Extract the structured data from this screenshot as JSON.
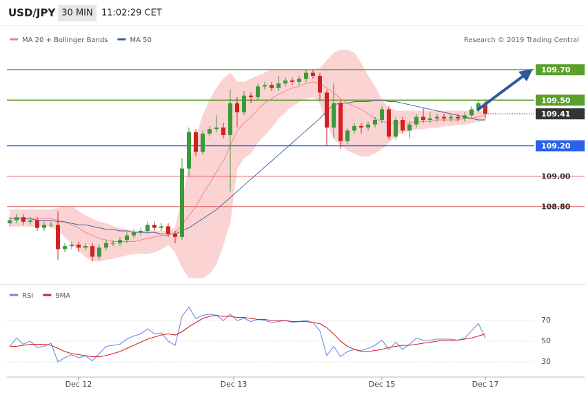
{
  "chart_data": [
    {
      "type": "candlestick",
      "title": "USD/JPY",
      "timeframe": "30 MIN",
      "time": "11:02:29 CET",
      "source": "Research © 2019 Trading Central",
      "xlim": [
        -0.4,
        76.1
      ],
      "ylim": [
        108.3,
        110.1
      ],
      "up_color": "#3a9a3a",
      "down_color": "#d42020",
      "candles": {
        "open": [
          108.69,
          108.71,
          108.73,
          108.7,
          108.71,
          108.66,
          108.68,
          108.68,
          108.52,
          108.54,
          108.55,
          108.53,
          108.54,
          108.47,
          108.53,
          108.56,
          108.56,
          108.58,
          108.61,
          108.63,
          108.64,
          108.68,
          108.66,
          108.67,
          108.62,
          108.6,
          109.05,
          109.29,
          109.16,
          109.28,
          109.31,
          109.32,
          109.27,
          109.48,
          109.42,
          109.53,
          109.52,
          109.59,
          109.6,
          109.58,
          109.61,
          109.63,
          109.62,
          109.64,
          109.68,
          109.66,
          109.55,
          109.32,
          109.48,
          109.23,
          109.3,
          109.33,
          109.32,
          109.34,
          109.37,
          109.44,
          109.26,
          109.37,
          109.3,
          109.34,
          109.39,
          109.37,
          109.38,
          109.39,
          109.38,
          109.39,
          109.38,
          109.4,
          109.44,
          109.48
        ],
        "high": [
          108.73,
          108.75,
          108.75,
          108.73,
          108.73,
          108.7,
          108.7,
          108.77,
          108.56,
          108.57,
          108.57,
          108.56,
          108.56,
          108.55,
          108.58,
          108.58,
          108.6,
          108.63,
          108.65,
          108.66,
          108.7,
          108.7,
          108.69,
          108.69,
          108.64,
          109.12,
          109.32,
          109.31,
          109.3,
          109.33,
          109.4,
          109.35,
          109.57,
          109.52,
          109.56,
          109.55,
          109.61,
          109.62,
          109.62,
          109.66,
          109.65,
          109.65,
          109.66,
          109.7,
          109.7,
          109.68,
          109.57,
          109.61,
          109.5,
          109.32,
          109.35,
          109.35,
          109.36,
          109.39,
          109.46,
          109.46,
          109.39,
          109.39,
          109.36,
          109.41,
          109.45,
          109.42,
          109.41,
          109.41,
          109.41,
          109.41,
          109.42,
          109.46,
          109.5,
          109.5
        ],
        "low": [
          108.67,
          108.69,
          108.68,
          108.68,
          108.64,
          108.64,
          108.66,
          108.45,
          108.5,
          108.52,
          108.5,
          108.51,
          108.44,
          108.45,
          108.51,
          108.54,
          108.54,
          108.56,
          108.59,
          108.61,
          108.62,
          108.64,
          108.64,
          108.6,
          108.56,
          108.58,
          109.0,
          109.13,
          109.14,
          109.26,
          109.29,
          109.25,
          108.9,
          109.32,
          109.4,
          109.48,
          109.5,
          109.57,
          109.56,
          109.56,
          109.59,
          109.6,
          109.6,
          109.62,
          109.64,
          109.5,
          109.2,
          109.25,
          109.18,
          109.21,
          109.28,
          109.28,
          109.3,
          109.32,
          109.35,
          109.24,
          109.24,
          109.28,
          109.25,
          109.32,
          109.35,
          109.35,
          109.36,
          109.36,
          109.36,
          109.36,
          109.36,
          109.38,
          109.42,
          109.38
        ],
        "close": [
          108.71,
          108.73,
          108.7,
          108.71,
          108.66,
          108.68,
          108.68,
          108.52,
          108.54,
          108.55,
          108.53,
          108.54,
          108.47,
          108.53,
          108.56,
          108.56,
          108.58,
          108.61,
          108.63,
          108.64,
          108.68,
          108.66,
          108.67,
          108.62,
          108.6,
          109.05,
          109.29,
          109.16,
          109.28,
          109.31,
          109.32,
          109.27,
          109.48,
          109.42,
          109.53,
          109.52,
          109.59,
          109.6,
          109.58,
          109.61,
          109.63,
          109.62,
          109.64,
          109.68,
          109.66,
          109.55,
          109.32,
          109.48,
          109.23,
          109.3,
          109.33,
          109.32,
          109.34,
          109.37,
          109.44,
          109.26,
          109.37,
          109.3,
          109.34,
          109.39,
          109.37,
          109.38,
          109.39,
          109.38,
          109.39,
          109.38,
          109.4,
          109.44,
          109.48,
          109.41
        ]
      },
      "series": [
        {
          "name": "MA 20 + Bollinger Bands",
          "color": "#f08080",
          "band_color": "#fbd3d3",
          "values": [
            108.72,
            108.72,
            108.72,
            108.72,
            108.72,
            108.72,
            108.72,
            108.71,
            108.7,
            108.68,
            108.66,
            108.63,
            108.61,
            108.59,
            108.58,
            108.57,
            108.57,
            108.57,
            108.57,
            108.58,
            108.59,
            108.6,
            108.61,
            108.61,
            108.63,
            108.68,
            108.74,
            108.8,
            108.88,
            108.95,
            109.03,
            109.1,
            109.2,
            109.3,
            109.35,
            109.39,
            109.44,
            109.48,
            109.51,
            109.54,
            109.56,
            109.58,
            109.59,
            109.61,
            109.62,
            109.61,
            109.58,
            109.55,
            109.51,
            109.48,
            109.46,
            109.44,
            109.41,
            109.38,
            109.36,
            109.35,
            109.35,
            109.35,
            109.35,
            109.36,
            109.36,
            109.36,
            109.37,
            109.37,
            109.37,
            109.37,
            109.38,
            109.38,
            109.39,
            109.4
          ],
          "upper": [
            108.78,
            108.78,
            108.78,
            108.78,
            108.78,
            108.78,
            108.78,
            108.79,
            108.8,
            108.8,
            108.77,
            108.74,
            108.72,
            108.7,
            108.69,
            108.67,
            108.66,
            108.65,
            108.64,
            108.64,
            108.64,
            108.64,
            108.64,
            108.64,
            108.66,
            108.85,
            109.05,
            109.25,
            109.4,
            109.5,
            109.58,
            109.64,
            109.68,
            109.62,
            109.62,
            109.64,
            109.66,
            109.68,
            109.7,
            109.7,
            109.7,
            109.7,
            109.7,
            109.7,
            109.7,
            109.71,
            109.76,
            109.81,
            109.83,
            109.83,
            109.81,
            109.74,
            109.66,
            109.59,
            109.5,
            109.45,
            109.43,
            109.43,
            109.43,
            109.43,
            109.43,
            109.43,
            109.43,
            109.43,
            109.43,
            109.43,
            109.43,
            109.43,
            109.43,
            109.43
          ],
          "lower": [
            108.67,
            108.67,
            108.67,
            108.67,
            108.67,
            108.67,
            108.67,
            108.64,
            108.6,
            108.56,
            108.51,
            108.47,
            108.44,
            108.44,
            108.45,
            108.46,
            108.47,
            108.48,
            108.49,
            108.49,
            108.49,
            108.5,
            108.52,
            108.55,
            108.5,
            108.4,
            108.33,
            108.33,
            108.33,
            108.36,
            108.42,
            108.55,
            108.7,
            109.05,
            109.12,
            109.15,
            109.22,
            109.27,
            109.32,
            109.38,
            109.42,
            109.46,
            109.49,
            109.51,
            109.52,
            109.48,
            109.35,
            109.25,
            109.2,
            109.17,
            109.15,
            109.13,
            109.13,
            109.15,
            109.18,
            109.22,
            109.27,
            109.29,
            109.3,
            109.31,
            109.31,
            109.32,
            109.32,
            109.33,
            109.33,
            109.34,
            109.34,
            109.35,
            109.36,
            109.37
          ]
        },
        {
          "name": "MA 50",
          "color": "#3d5a99",
          "values": [
            108.72,
            108.72,
            108.72,
            108.72,
            108.71,
            108.71,
            108.71,
            108.7,
            108.7,
            108.69,
            108.68,
            108.68,
            108.67,
            108.66,
            108.65,
            108.65,
            108.64,
            108.64,
            108.63,
            108.63,
            108.63,
            108.63,
            108.62,
            108.62,
            108.62,
            108.64,
            108.66,
            108.69,
            108.72,
            108.75,
            108.78,
            108.82,
            108.86,
            108.9,
            108.94,
            108.98,
            109.02,
            109.06,
            109.1,
            109.14,
            109.18,
            109.22,
            109.26,
            109.3,
            109.34,
            109.38,
            109.43,
            109.47,
            109.48,
            109.48,
            109.49,
            109.49,
            109.49,
            109.5,
            109.5,
            109.49,
            109.49,
            109.48,
            109.47,
            109.46,
            109.45,
            109.44,
            109.43,
            109.42,
            109.41,
            109.4,
            109.39,
            109.38,
            109.37,
            109.37
          ]
        }
      ],
      "levels": [
        {
          "value": 109.7,
          "label": "109.70",
          "color": "#5aa02c",
          "boxed": true,
          "dotted": false
        },
        {
          "value": 109.5,
          "label": "109.50",
          "color": "#5aa02c",
          "boxed": true,
          "dotted": false
        },
        {
          "value": 109.41,
          "label": "109.41",
          "color": "#333333",
          "boxed": true,
          "dotted": true
        },
        {
          "value": 109.2,
          "label": "109.20",
          "color": "#2962e8",
          "boxed": true,
          "dotted": false
        },
        {
          "value": 109.0,
          "label": "109.00",
          "color": "#e06060",
          "boxed": false,
          "dotted": false
        },
        {
          "value": 108.8,
          "label": "108.80",
          "color": "#e06060",
          "boxed": false,
          "dotted": false
        }
      ]
    },
    {
      "type": "line",
      "xlim": [
        -0.4,
        76.1
      ],
      "ylim": [
        20,
        100
      ],
      "yticks": [
        30,
        50,
        70
      ],
      "grid": true,
      "xticks": [
        {
          "value": 10,
          "label": "Dec 12"
        },
        {
          "value": 32.5,
          "label": "Dec 13"
        },
        {
          "value": 54,
          "label": "Dec 15"
        },
        {
          "value": 69,
          "label": "Dec 17"
        }
      ],
      "series": [
        {
          "name": "RSI",
          "color": "#6a8ee0",
          "values": [
            45,
            53,
            47,
            50,
            44,
            45,
            48,
            30,
            34,
            37,
            34,
            36,
            31,
            38,
            45,
            46,
            47,
            52,
            55,
            57,
            62,
            57,
            58,
            50,
            46,
            74,
            83,
            72,
            75,
            76,
            75,
            70,
            76,
            70,
            72,
            69,
            71,
            70,
            68,
            69,
            70,
            68,
            69,
            70,
            68,
            60,
            36,
            45,
            35,
            40,
            42,
            41,
            43,
            46,
            51,
            42,
            49,
            42,
            47,
            53,
            51,
            51,
            52,
            52,
            52,
            51,
            53,
            60,
            67,
            53
          ]
        },
        {
          "name": "9MA",
          "color": "#d42020",
          "values": [
            45,
            45,
            46,
            47,
            47,
            47,
            46,
            43,
            40,
            38,
            37,
            36,
            35,
            35,
            36,
            38,
            40,
            43,
            46,
            49,
            52,
            54,
            56,
            57,
            56,
            59,
            64,
            68,
            72,
            74,
            75,
            74,
            74,
            73,
            73,
            72,
            71,
            71,
            70,
            70,
            70,
            69,
            69,
            69,
            68,
            67,
            63,
            57,
            50,
            45,
            42,
            40,
            40,
            41,
            42,
            44,
            45,
            46,
            46,
            47,
            48,
            49,
            50,
            51,
            51,
            51,
            52,
            53,
            55,
            57
          ]
        }
      ]
    }
  ]
}
